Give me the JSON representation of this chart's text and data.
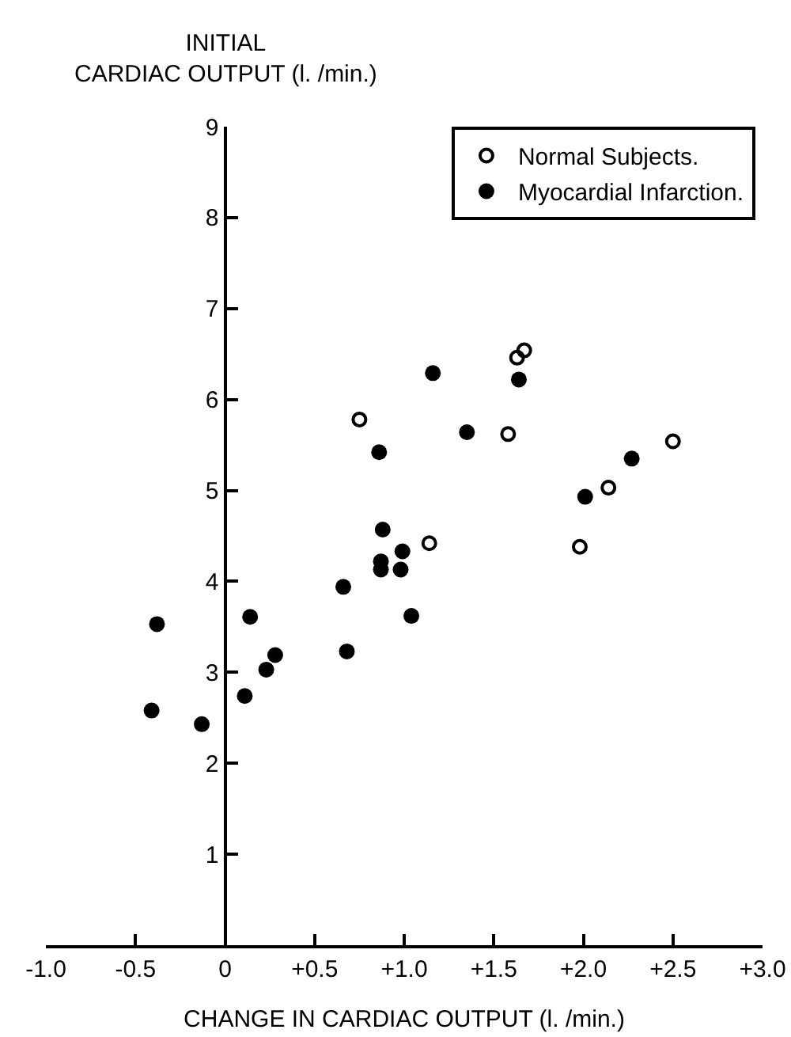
{
  "chart_data": {
    "type": "scatter",
    "xlabel": "CHANGE IN CARDIAC OUTPUT (l. /min.)",
    "ylabel": "INITIAL\nCARDIAC OUTPUT (l. /min.)",
    "series": [
      {
        "name": "Normal Subjects.",
        "color": "#000000",
        "marker": "circle-open",
        "x": [
          0.75,
          1.14,
          1.58,
          1.63,
          1.67,
          1.98,
          2.14,
          2.5
        ],
        "values": [
          5.78,
          4.42,
          5.62,
          6.46,
          6.54,
          4.38,
          5.03,
          5.54
        ]
      },
      {
        "name": "Myocardial Infarction.",
        "color": "#000000",
        "marker": "circle",
        "x": [
          -0.41,
          -0.38,
          -0.13,
          0.11,
          0.14,
          0.23,
          0.28,
          0.66,
          0.68,
          0.86,
          0.88,
          0.87,
          0.87,
          0.98,
          0.99,
          1.04,
          1.16,
          1.35,
          1.64,
          2.01,
          2.27
        ],
        "values": [
          2.58,
          3.53,
          2.43,
          2.74,
          3.61,
          3.03,
          3.19,
          3.94,
          3.23,
          5.42,
          4.57,
          4.22,
          4.13,
          4.13,
          4.33,
          3.62,
          6.29,
          5.64,
          6.22,
          4.93,
          5.35
        ]
      }
    ],
    "xlim": [
      -1,
      3
    ],
    "xticks": [
      {
        "value": -1,
        "label": "-1.0"
      },
      {
        "value": -0.5,
        "label": "-0.5"
      },
      0,
      {
        "value": 0.5,
        "label": "+0.5"
      },
      {
        "value": 1,
        "label": "+1.0"
      },
      {
        "value": 1.5,
        "label": "+1.5"
      },
      {
        "value": 2,
        "label": "+2.0"
      },
      {
        "value": 2.5,
        "label": "+2.5"
      },
      {
        "value": 3,
        "label": "+3.0"
      }
    ],
    "ylim": [
      0,
      9
    ],
    "yticks": [
      1,
      2,
      3,
      4,
      5,
      6,
      7,
      8,
      9
    ],
    "grid": false,
    "legend": "top right"
  }
}
